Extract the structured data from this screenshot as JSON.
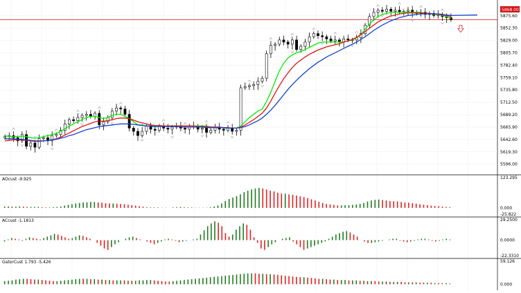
{
  "colors": {
    "bull": "#1f7a1f",
    "bear": "#e02020",
    "candle_up_body": "#ffffff",
    "candle_down_body": "#000000",
    "ma_fast": "#00ee00",
    "ma_mid": "#e01010",
    "ma_slow": "#1040d0",
    "price_line": "#d01010",
    "grid": "#c8c8c8"
  },
  "chart_data": [
    {
      "type": "candlestick",
      "panel": "main",
      "y_ticks": [
        "5875.60",
        "5852.30",
        "5829.00",
        "5805.70",
        "5782.40",
        "5759.10",
        "5735.80",
        "5712.50",
        "5689.20",
        "5665.90",
        "5642.60",
        "5619.30",
        "5596.00"
      ],
      "ylim": [
        5580,
        5900
      ],
      "price_tag": "5868.00",
      "price": 5868.0,
      "closes": [
        5648,
        5650,
        5646,
        5640,
        5652,
        5630,
        5636,
        5628,
        5644,
        5646,
        5640,
        5650,
        5652,
        5660,
        5672,
        5680,
        5678,
        5684,
        5688,
        5690,
        5686,
        5692,
        5670,
        5676,
        5684,
        5696,
        5702,
        5700,
        5690,
        5664,
        5658,
        5650,
        5658,
        5668,
        5662,
        5660,
        5668,
        5664,
        5662,
        5666,
        5668,
        5664,
        5662,
        5666,
        5668,
        5662,
        5664,
        5656,
        5660,
        5666,
        5662,
        5660,
        5664,
        5658,
        5660,
        5740,
        5742,
        5744,
        5746,
        5752,
        5758,
        5804,
        5820,
        5822,
        5830,
        5826,
        5822,
        5830,
        5812,
        5818,
        5826,
        5836,
        5842,
        5838,
        5836,
        5832,
        5828,
        5830,
        5826,
        5832,
        5830,
        5830,
        5834,
        5842,
        5858,
        5874,
        5882,
        5886,
        5884,
        5888,
        5884,
        5886,
        5882,
        5884,
        5886,
        5882,
        5880,
        5882,
        5878,
        5880,
        5876,
        5878,
        5874,
        5872,
        5868
      ],
      "series": [
        {
          "name": "",
          "values": [
            5650,
            5648,
            5648,
            5648,
            5649,
            5648,
            5646,
            5645,
            5646,
            5648,
            5650,
            5652,
            5654,
            5658,
            5663,
            5668,
            5672,
            5676,
            5680,
            5684,
            5686,
            5686,
            5684,
            5682,
            5684,
            5688,
            5690,
            5690,
            5686,
            5682,
            5676,
            5670,
            5670,
            5668,
            5668,
            5666,
            5668,
            5668,
            5668,
            5668,
            5668,
            5668,
            5668,
            5668,
            5668,
            5668,
            5668,
            5668,
            5666,
            5666,
            5666,
            5664,
            5664,
            5664,
            5664,
            5668,
            5676,
            5684,
            5690,
            5696,
            5700,
            5714,
            5732,
            5752,
            5772,
            5786,
            5796,
            5802,
            5806,
            5808,
            5812,
            5816,
            5820,
            5824,
            5826,
            5826,
            5826,
            5826,
            5826,
            5826,
            5828,
            5830,
            5834,
            5840,
            5850,
            5860,
            5868,
            5874,
            5878,
            5880,
            5882,
            5882,
            5882,
            5882,
            5882,
            5882,
            5882,
            5882,
            5880,
            5880,
            5878,
            5878,
            5876,
            5874,
            5870
          ]
        },
        {
          "name": "",
          "values": [
            5640,
            5641,
            5642,
            5642,
            5642,
            5641,
            5640,
            5639,
            5639,
            5640,
            5641,
            5642,
            5644,
            5647,
            5651,
            5655,
            5659,
            5663,
            5667,
            5670,
            5673,
            5676,
            5677,
            5677,
            5678,
            5680,
            5682,
            5683,
            5683,
            5682,
            5679,
            5676,
            5674,
            5672,
            5670,
            5669,
            5669,
            5668,
            5668,
            5668,
            5668,
            5668,
            5668,
            5668,
            5668,
            5667,
            5667,
            5667,
            5666,
            5666,
            5666,
            5665,
            5665,
            5664,
            5664,
            5666,
            5670,
            5675,
            5680,
            5686,
            5692,
            5702,
            5715,
            5730,
            5744,
            5757,
            5768,
            5778,
            5786,
            5792,
            5798,
            5803,
            5807,
            5811,
            5814,
            5817,
            5819,
            5821,
            5823,
            5826,
            5828,
            5831,
            5835,
            5840,
            5846,
            5852,
            5858,
            5864,
            5868,
            5872,
            5875,
            5877,
            5879,
            5880,
            5881,
            5881,
            5881,
            5881,
            5880,
            5880,
            5879,
            5878,
            5877,
            5876,
            5874
          ]
        },
        {
          "name": "",
          "values": [
            5644,
            5644,
            5644,
            5643,
            5643,
            5642,
            5641,
            5640,
            5640,
            5640,
            5641,
            5642,
            5643,
            5645,
            5647,
            5650,
            5652,
            5655,
            5658,
            5661,
            5663,
            5665,
            5667,
            5668,
            5669,
            5670,
            5671,
            5672,
            5672,
            5672,
            5671,
            5670,
            5669,
            5668,
            5668,
            5667,
            5667,
            5667,
            5667,
            5667,
            5667,
            5666,
            5666,
            5666,
            5666,
            5666,
            5666,
            5665,
            5665,
            5665,
            5665,
            5665,
            5664,
            5664,
            5664,
            5665,
            5667,
            5670,
            5674,
            5678,
            5683,
            5690,
            5698,
            5707,
            5717,
            5727,
            5737,
            5746,
            5754,
            5762,
            5769,
            5776,
            5782,
            5788,
            5793,
            5798,
            5802,
            5806,
            5810,
            5814,
            5818,
            5822,
            5826,
            5831,
            5836,
            5842,
            5848,
            5853,
            5858,
            5862,
            5866,
            5869,
            5872,
            5874,
            5876,
            5877,
            5878,
            5879,
            5879,
            5879,
            5879,
            5879,
            5878,
            5877,
            5876
          ]
        }
      ]
    },
    {
      "type": "bar",
      "panel": "indicator-1",
      "label": "AOcust -9.925",
      "y_ticks": [
        "123.295",
        "0.000",
        "-25.822"
      ],
      "ylim": [
        -25.822,
        123.295
      ],
      "values": [
        6,
        6,
        5,
        5,
        6,
        5,
        4,
        4,
        4,
        4,
        3,
        2,
        2,
        3,
        4,
        6,
        9,
        12,
        15,
        18,
        20,
        22,
        23,
        24,
        24,
        22,
        21,
        19,
        18,
        18,
        17,
        16,
        15,
        13,
        11,
        9,
        7,
        5,
        3,
        2,
        2,
        2,
        1,
        1,
        0,
        2,
        3,
        4,
        3,
        2,
        2,
        1,
        1,
        1,
        1,
        3,
        6,
        10,
        18,
        28,
        36,
        42,
        48,
        55,
        64,
        70,
        75,
        79,
        81,
        79,
        75,
        70,
        67,
        62,
        58,
        58,
        55,
        53,
        50,
        47,
        44,
        40,
        35,
        30,
        25,
        20,
        16,
        14,
        12,
        10,
        10,
        11,
        11,
        12,
        14,
        16,
        20,
        26,
        30,
        33,
        34,
        32,
        30,
        28,
        27,
        26,
        24,
        22,
        21,
        19,
        17,
        15,
        13,
        11,
        9,
        8,
        7,
        5,
        4,
        3
      ]
    },
    {
      "type": "bar",
      "panel": "indicator-2",
      "label": "ACcust -1.1813",
      "y_ticks": [
        "29.2500",
        "0.0000",
        "-22.3310"
      ],
      "ylim": [
        -22.331,
        29.25
      ],
      "values": [
        -2,
        1,
        3,
        2,
        1,
        -1,
        2,
        4,
        3,
        2,
        1,
        3,
        5,
        7,
        9,
        8,
        6,
        4,
        2,
        3,
        5,
        7,
        6,
        4,
        2,
        0,
        -4,
        -8,
        -12,
        -14,
        -10,
        -6,
        -3,
        0,
        2,
        4,
        5,
        3,
        1,
        0,
        -2,
        -4,
        -6,
        -4,
        -2,
        1,
        2,
        1,
        -1,
        -3,
        -2,
        -1,
        0,
        1,
        2,
        8,
        14,
        20,
        24,
        27,
        25,
        20,
        10,
        5,
        8,
        15,
        20,
        24,
        22,
        15,
        4,
        -4,
        -12,
        -14,
        -10,
        -6,
        -3,
        0,
        2,
        3,
        4,
        -2,
        -6,
        -10,
        -14,
        -12,
        -10,
        -8,
        -6,
        -4,
        -2,
        2,
        5,
        8,
        10,
        12,
        13,
        11,
        8,
        5,
        0,
        -2,
        -4,
        -4,
        -3,
        -2,
        -1,
        0,
        1,
        2,
        2,
        -1,
        -2,
        -3,
        -2,
        -1,
        1,
        2,
        2,
        1,
        -1,
        -2,
        -1,
        1,
        2,
        1
      ]
    },
    {
      "type": "bar",
      "panel": "indicator-3",
      "label": "GatorCust 1.793 -5.426",
      "y_ticks": [
        "59.126",
        "0.000"
      ],
      "ylim": [
        -10,
        59.126
      ],
      "values": [
        8,
        9,
        10,
        12,
        13,
        14,
        14,
        13,
        12,
        12,
        11,
        10,
        9,
        8,
        8,
        9,
        10,
        11,
        12,
        13,
        14,
        14,
        14,
        13,
        13,
        12,
        12,
        11,
        11,
        10,
        10,
        10,
        10,
        9,
        9,
        9,
        10,
        10,
        11,
        11,
        10,
        9,
        8,
        7,
        7,
        8,
        9,
        10,
        11,
        12,
        13,
        14,
        15,
        16,
        17,
        18,
        19,
        20,
        21,
        22,
        23,
        24,
        25,
        26,
        27,
        28,
        28,
        28,
        27,
        27,
        26,
        26,
        25,
        24,
        23,
        22,
        21,
        20,
        19,
        18,
        18,
        17,
        16,
        15,
        14,
        14,
        13,
        12,
        12,
        11,
        11,
        11,
        10,
        10,
        10,
        9,
        9,
        8,
        8,
        8,
        7,
        7,
        7,
        6,
        6,
        6,
        6,
        5,
        5,
        5,
        5,
        4,
        4,
        4,
        4,
        3,
        3,
        3,
        3,
        2
      ],
      "direction": [
        1,
        1,
        1,
        1,
        1,
        1,
        0,
        0,
        0,
        1,
        0,
        0,
        0,
        0,
        1,
        1,
        1,
        1,
        1,
        1,
        1,
        0,
        1,
        0,
        1,
        0,
        1,
        0,
        1,
        0,
        1,
        1,
        0,
        1,
        0,
        1,
        1,
        1,
        1,
        1,
        0,
        0,
        0,
        0,
        0,
        1,
        1,
        1,
        1,
        1,
        1,
        1,
        1,
        1,
        1,
        1,
        1,
        1,
        1,
        1,
        1,
        1,
        1,
        1,
        1,
        1,
        1,
        0,
        0,
        1,
        0,
        1,
        0,
        0,
        0,
        0,
        0,
        0,
        0,
        0,
        1,
        0,
        0,
        0,
        0,
        1,
        0,
        0,
        1,
        0,
        1,
        1,
        0,
        1,
        1,
        0,
        1,
        0,
        1,
        0,
        0,
        1,
        0,
        1,
        0,
        1,
        0,
        0,
        1,
        0,
        1,
        0,
        0,
        1,
        0,
        1,
        0,
        0,
        1,
        0
      ]
    }
  ]
}
